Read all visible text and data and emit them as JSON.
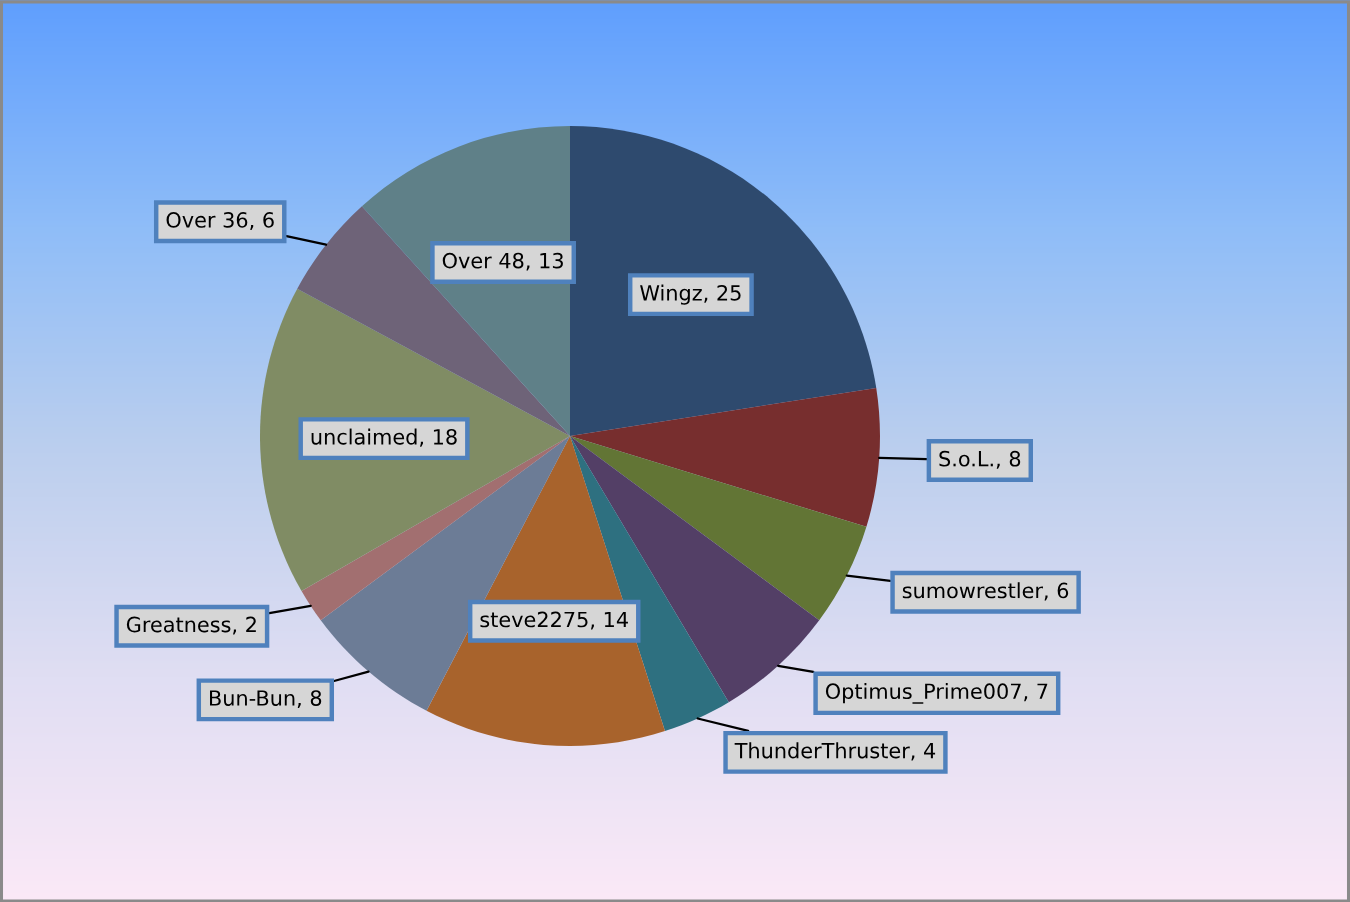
{
  "chart_data": {
    "type": "pie",
    "categories": [
      "Wingz",
      "S.o.L.",
      "sumowrestler",
      "Optimus_Prime007",
      "ThunderThruster",
      "steve2275",
      "Bun-Bun",
      "Greatness",
      "unclaimed",
      "Over 36",
      "Over 48"
    ],
    "values": [
      25,
      8,
      6,
      7,
      4,
      14,
      8,
      2,
      18,
      6,
      13
    ],
    "value_labels": [
      ", 25",
      ", 8",
      ", 6",
      ", 7",
      ", 4",
      ", 14",
      ", 8",
      ", 2",
      ", 18",
      ", 6",
      ", 13"
    ],
    "colors": [
      "#2e4a6e",
      "#772e2e",
      "#627535",
      "#533f66",
      "#2e7080",
      "#a8632c",
      "#6c7c96",
      "#a26f70",
      "#808c64",
      "#6e6378",
      "#5f8088"
    ]
  }
}
